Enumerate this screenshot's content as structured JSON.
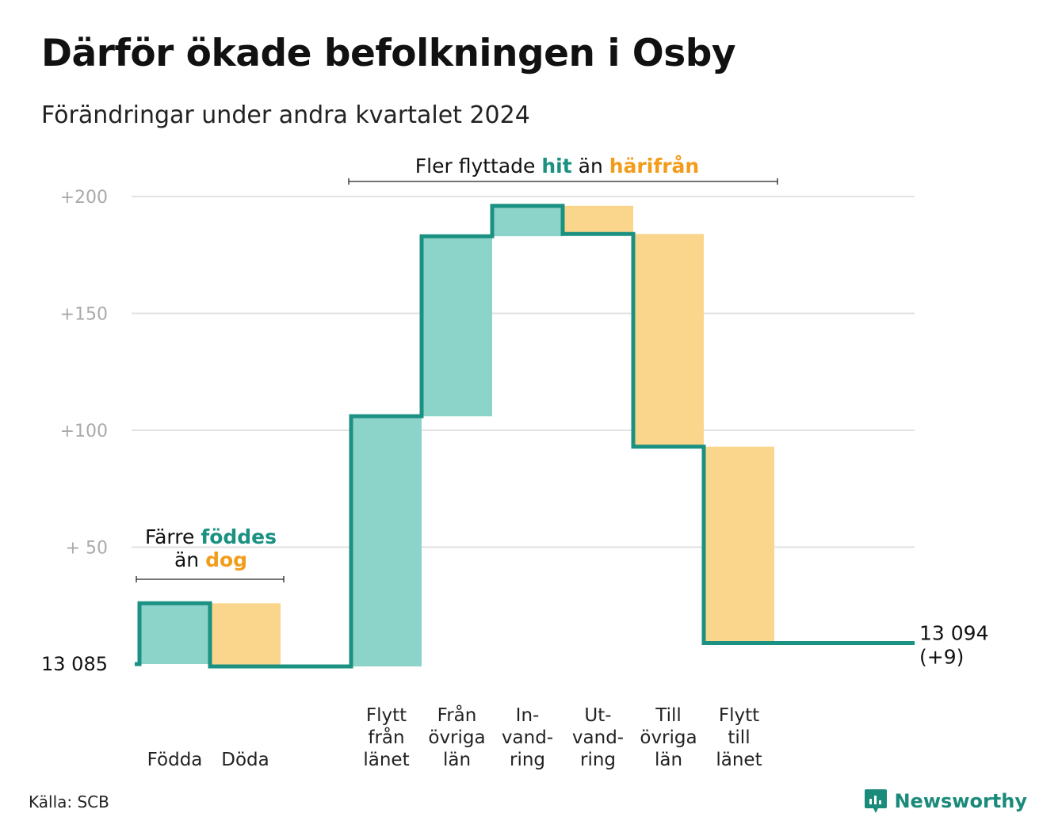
{
  "title": "Därför ökade befolkningen i Osby",
  "subtitle": "Förändringar under andra kvartalet 2024",
  "source": "Källa: SCB",
  "brand": "Newsworthy",
  "colors": {
    "increase": "#8cd3ca",
    "decrease": "#fad58c",
    "line": "#1b9181",
    "teal_text": "#1b9181",
    "orange_text": "#f29c1a",
    "grid": "#e2e2e2",
    "axis_text": "#aaaaaa"
  },
  "chart_data": {
    "type": "waterfall",
    "start_label": "13  085",
    "end_label": "13 094",
    "end_change_label": "(+9)",
    "ylim": [
      0,
      200
    ],
    "y_ticks": [
      {
        "value": 200,
        "label": "+200"
      },
      {
        "value": 150,
        "label": "+150"
      },
      {
        "value": 100,
        "label": "+100"
      },
      {
        "value": 50,
        "label": "+  50"
      }
    ],
    "grid": true,
    "steps": [
      {
        "label": [
          "Födda"
        ],
        "change": 26
      },
      {
        "label": [
          "Döda"
        ],
        "change": -27
      },
      {
        "label": [],
        "change": 0
      },
      {
        "label": [
          "Flytt",
          "från",
          "länet"
        ],
        "change": 107
      },
      {
        "label": [
          "Från",
          "övriga",
          "län"
        ],
        "change": 77
      },
      {
        "label": [
          "In-",
          "vand-",
          "ring"
        ],
        "change": 13
      },
      {
        "label": [
          "Ut-",
          "vand-",
          "ring"
        ],
        "change": -12
      },
      {
        "label": [
          "Till",
          "övriga",
          "län"
        ],
        "change": -91
      },
      {
        "label": [
          "Flytt",
          "till",
          "länet"
        ],
        "change": -84
      }
    ],
    "annotations": [
      {
        "lines": [
          [
            {
              "text": "Färre ",
              "color": "normal"
            },
            {
              "text": "föddes",
              "color": "teal"
            }
          ],
          [
            {
              "text": "än ",
              "color": "normal"
            },
            {
              "text": "dog",
              "color": "orange"
            }
          ]
        ]
      },
      {
        "lines": [
          [
            {
              "text": "Fler flyttade ",
              "color": "normal"
            },
            {
              "text": "hit",
              "color": "teal"
            },
            {
              "text": "  än ",
              "color": "normal"
            },
            {
              "text": "härifrån",
              "color": "orange"
            }
          ]
        ]
      }
    ]
  }
}
